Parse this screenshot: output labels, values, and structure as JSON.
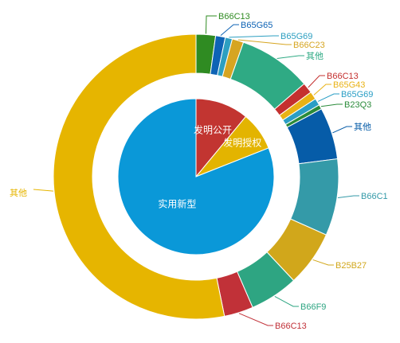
{
  "chart_data": {
    "type": "pie",
    "subtype": "nested-donut",
    "inner": {
      "slices": [
        {
          "name": "发明公开",
          "value": 11,
          "color": "#c23531"
        },
        {
          "name": "发明授权",
          "value": 8,
          "color": "#e3b400"
        },
        {
          "name": "实用新型",
          "value": 81,
          "color": "#0a98d8"
        }
      ]
    },
    "outer": {
      "slices": [
        {
          "name": "B66C13",
          "value": 2.2,
          "color": "#2f8b22"
        },
        {
          "name": "B65G65",
          "value": 1.1,
          "color": "#0e63b5"
        },
        {
          "name": "B65G69",
          "value": 0.8,
          "color": "#2d9fc1"
        },
        {
          "name": "B66C23",
          "value": 1.3,
          "color": "#d6a521"
        },
        {
          "name": "其他",
          "value": 8.3,
          "color": "#2faa84"
        },
        {
          "name": "B66C13",
          "value": 1.2,
          "color": "#c4302f"
        },
        {
          "name": "B65G43",
          "value": 0.9,
          "color": "#e9b214"
        },
        {
          "name": "B65G69",
          "value": 0.8,
          "color": "#2a9ec5"
        },
        {
          "name": "B23Q3",
          "value": 0.5,
          "color": "#2a8b3a"
        },
        {
          "name": "其他",
          "value": 5.9,
          "color": "#065ca8"
        },
        {
          "name": "B66C1",
          "value": 8.7,
          "color": "#349aa8"
        },
        {
          "name": "B25B27",
          "value": 6.3,
          "color": "#d1a71b"
        },
        {
          "name": "B66F9",
          "value": 5.5,
          "color": "#2ea582"
        },
        {
          "name": "B66C13",
          "value": 3.3,
          "color": "#c13138"
        },
        {
          "name": "其他",
          "value": 53.2,
          "color": "#e6b500"
        }
      ]
    }
  }
}
